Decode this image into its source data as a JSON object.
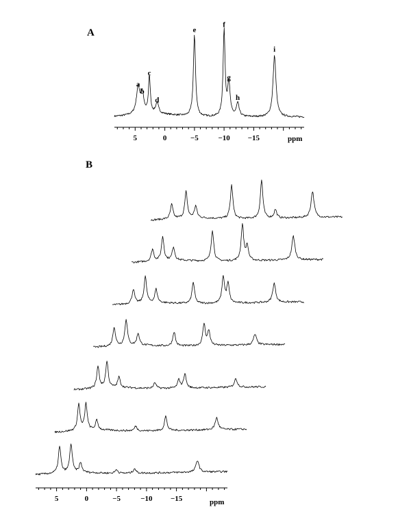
{
  "chart_data": [
    {
      "panel": "A",
      "type": "line",
      "xlabel": "ppm",
      "xlim": [
        8.5,
        -23.5
      ],
      "xticks": [
        5,
        0,
        -5,
        -10,
        -15
      ],
      "xtick_labels": [
        "5",
        "0",
        "−5",
        "−10",
        "−15"
      ],
      "peaks": [
        {
          "label": "a",
          "ppm": 4.5,
          "height": 0.3
        },
        {
          "label": "b",
          "ppm": 3.8,
          "height": 0.22
        },
        {
          "label": "c",
          "ppm": 2.6,
          "height": 0.43
        },
        {
          "label": "d",
          "ppm": 1.3,
          "height": 0.12
        },
        {
          "label": "e",
          "ppm": -5.0,
          "height": 0.92
        },
        {
          "label": "f",
          "ppm": -10.0,
          "height": 0.98
        },
        {
          "label": "g",
          "ppm": -10.8,
          "height": 0.38
        },
        {
          "label": "h",
          "ppm": -12.3,
          "height": 0.15
        },
        {
          "label": "i",
          "ppm": -18.5,
          "height": 0.7
        }
      ]
    },
    {
      "panel": "B",
      "type": "line",
      "xlabel": "ppm",
      "xlim": [
        8.5,
        -23.5
      ],
      "xticks": [
        5,
        0,
        -5,
        -10,
        -15
      ],
      "xtick_labels": [
        "5",
        "0",
        "−5",
        "−10",
        "−15"
      ],
      "stacked_spectra": [
        {
          "index": 1,
          "peak_ppm": [
            5.0,
            2.6,
            1.0,
            -5.0,
            -10.0,
            -12.3,
            -18.5
          ],
          "peak_heights": [
            0.3,
            0.55,
            0.25,
            0.7,
            0.8,
            0.18,
            0.55
          ]
        },
        {
          "index": 2,
          "peak_ppm": [
            5.0,
            3.3,
            1.5,
            -5.0,
            -10.0,
            -10.8,
            -18.5
          ],
          "peak_heights": [
            0.25,
            0.5,
            0.28,
            0.65,
            0.75,
            0.3,
            0.5
          ]
        },
        {
          "index": 3,
          "peak_ppm": [
            5.0,
            3.0,
            1.2,
            -5.0,
            -10.0,
            -10.8,
            -18.5
          ],
          "peak_heights": [
            0.3,
            0.55,
            0.28,
            0.45,
            0.55,
            0.4,
            0.4
          ]
        },
        {
          "index": 4,
          "peak_ppm": [
            5.0,
            3.0,
            1.0,
            -5.0,
            -10.0,
            -10.8,
            -18.5
          ],
          "peak_heights": [
            0.4,
            0.55,
            0.25,
            0.3,
            0.45,
            0.3,
            0.22
          ]
        },
        {
          "index": 5,
          "peak_ppm": [
            4.5,
            3.0,
            1.0,
            -5.0,
            -9.0,
            -10.0,
            -18.5
          ],
          "peak_heights": [
            0.45,
            0.55,
            0.22,
            0.12,
            0.18,
            0.3,
            0.18
          ]
        },
        {
          "index": 6,
          "peak_ppm": [
            4.5,
            3.3,
            1.5,
            -5.0,
            -10.0,
            -18.5
          ],
          "peak_heights": [
            0.55,
            0.55,
            0.2,
            0.1,
            0.3,
            0.25
          ]
        },
        {
          "index": 7,
          "peak_ppm": [
            4.5,
            2.6,
            1.0,
            -5.0,
            -8.0,
            -18.5
          ],
          "peak_heights": [
            0.55,
            0.6,
            0.2,
            0.08,
            0.1,
            0.25
          ]
        }
      ]
    }
  ]
}
